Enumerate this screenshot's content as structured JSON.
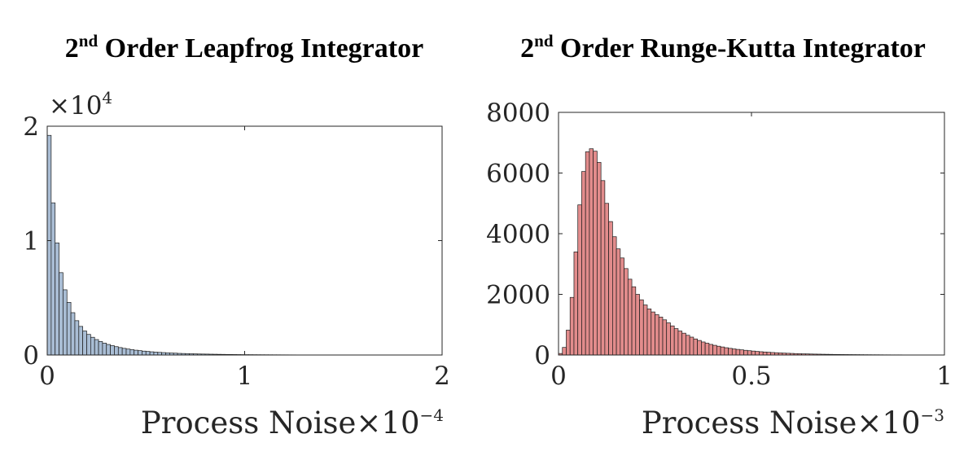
{
  "chart_data": [
    {
      "type": "bar",
      "title_prefix": "2",
      "title_sup": "nd",
      "title_rest": " Order Leapfrog Integrator",
      "xlabel": "Process Noise",
      "x_multiplier": "×10",
      "x_multiplier_exp": "−4",
      "y_multiplier": "×10",
      "y_multiplier_exp": "4",
      "xlim": [
        0,
        2
      ],
      "ylim": [
        0,
        2
      ],
      "xticks": [
        0,
        1,
        2
      ],
      "xtick_labels": [
        "0",
        "1",
        "2"
      ],
      "yticks": [
        0,
        1,
        2
      ],
      "ytick_labels": [
        "0",
        "1",
        "2"
      ],
      "grid": false,
      "bar_color": "#a9bdd4",
      "bin_start": 0.0,
      "bin_width": 0.02,
      "values": [
        1.92,
        1.33,
        0.98,
        0.72,
        0.57,
        0.46,
        0.37,
        0.3,
        0.25,
        0.21,
        0.18,
        0.155,
        0.135,
        0.118,
        0.104,
        0.092,
        0.082,
        0.073,
        0.065,
        0.058,
        0.052,
        0.047,
        0.042,
        0.038,
        0.034,
        0.031,
        0.028,
        0.025,
        0.023,
        0.021,
        0.019,
        0.017,
        0.016,
        0.014,
        0.013,
        0.012,
        0.011,
        0.01,
        0.009,
        0.0085,
        0.008,
        0.0072,
        0.0066,
        0.006,
        0.0055,
        0.005,
        0.0046,
        0.0042,
        0.0038,
        0.0035,
        0.0032,
        0.003,
        0.0027,
        0.0025,
        0.0023,
        0.0021,
        0.002,
        0.0018,
        0.0017,
        0.0015,
        0.0014,
        0.0013,
        0.0012,
        0.0011,
        0.001,
        0.001,
        0.0009,
        0.0008,
        0.0008,
        0.0007,
        0.0007,
        0.0006,
        0.0006,
        0.0005,
        0.0005,
        0.0005,
        0.0004,
        0.0004,
        0.0004,
        0.0003,
        0.0003,
        0.0003,
        0.0003,
        0.0002,
        0.0002,
        0.0002,
        0.0002,
        0.0002,
        0.0002,
        0.0001,
        0.0001,
        0.0001,
        0.0001,
        0.0001,
        0.0001,
        0.0001,
        0.0001,
        0.0001,
        0.0001,
        0.0001
      ]
    },
    {
      "type": "bar",
      "title_prefix": "2",
      "title_sup": "nd",
      "title_rest": " Order Runge-Kutta Integrator",
      "xlabel": "Process Noise",
      "x_multiplier": "×10",
      "x_multiplier_exp": "−3",
      "xlim": [
        0,
        1
      ],
      "ylim": [
        0,
        8000
      ],
      "xticks": [
        0,
        0.5,
        1
      ],
      "xtick_labels": [
        "0",
        "0.5",
        "1"
      ],
      "yticks": [
        0,
        2000,
        4000,
        6000,
        8000
      ],
      "ytick_labels": [
        "0",
        "2000",
        "4000",
        "6000",
        "8000"
      ],
      "grid": false,
      "bar_color": "#e28c8c",
      "bin_start": 0.0,
      "bin_width": 0.01,
      "values": [
        50,
        250,
        820,
        1900,
        3400,
        4950,
        6050,
        6700,
        6800,
        6720,
        6350,
        5750,
        5000,
        4400,
        3900,
        3500,
        3200,
        2850,
        2500,
        2250,
        2000,
        1820,
        1650,
        1520,
        1420,
        1330,
        1250,
        1160,
        1060,
        960,
        870,
        790,
        720,
        650,
        590,
        530,
        480,
        430,
        390,
        350,
        320,
        290,
        265,
        240,
        220,
        200,
        185,
        170,
        155,
        142,
        130,
        118,
        108,
        99,
        90,
        82,
        75,
        68,
        62,
        57,
        52,
        47,
        43,
        39,
        36,
        33,
        30,
        28,
        25,
        23,
        21,
        19,
        18,
        16,
        15,
        14,
        13,
        12,
        11,
        10,
        9,
        8,
        8,
        7,
        6,
        6,
        5,
        5,
        5,
        4,
        4,
        4,
        3,
        3,
        3,
        3,
        2,
        2,
        2,
        2
      ]
    }
  ]
}
